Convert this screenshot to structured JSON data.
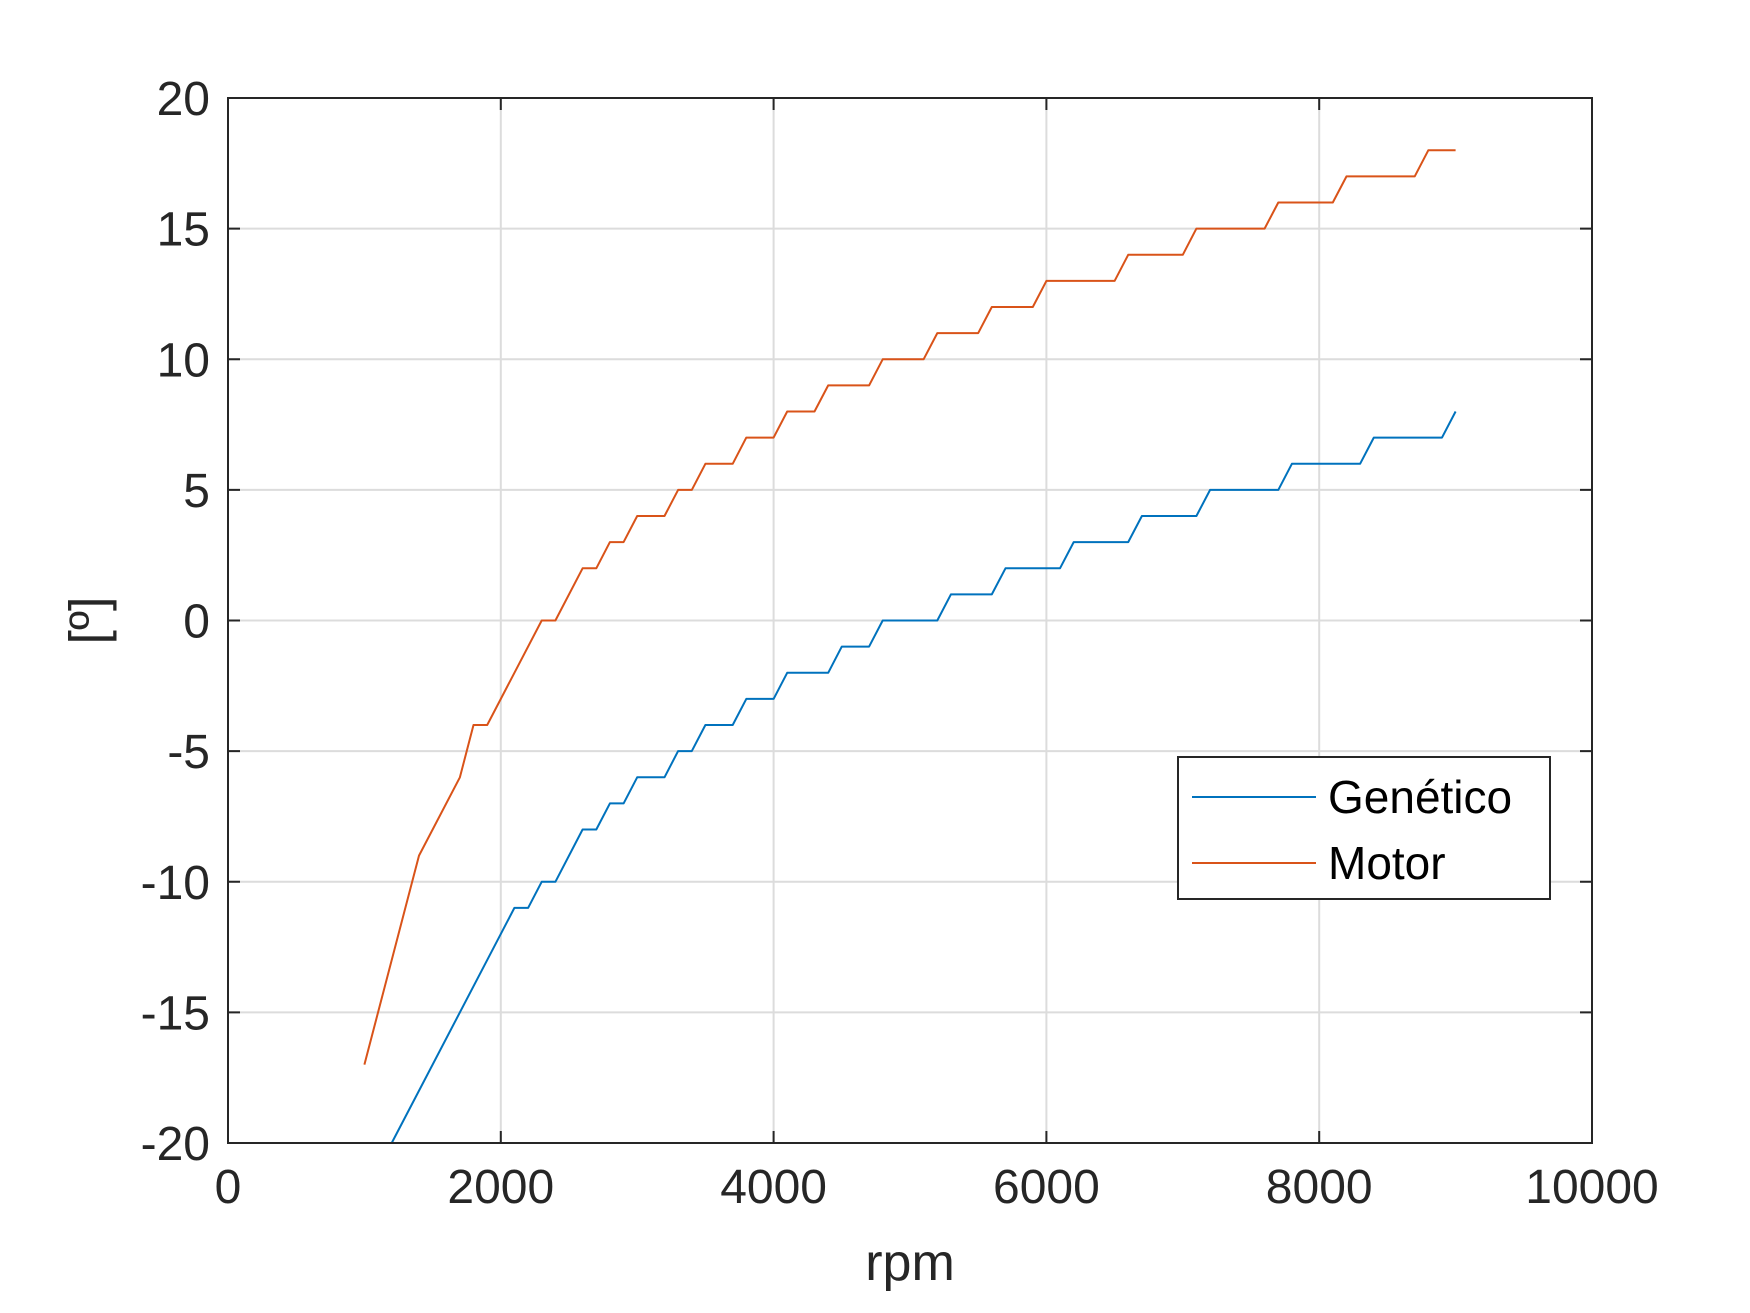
{
  "chart_data": {
    "type": "line",
    "xlabel": "rpm",
    "ylabel": "[º]",
    "xlim": [
      0,
      10000
    ],
    "ylim": [
      -20,
      20
    ],
    "xticks": [
      0,
      2000,
      4000,
      6000,
      8000,
      10000
    ],
    "xtick_labels": [
      "0",
      "2000",
      "4000",
      "6000",
      "8000",
      "10000"
    ],
    "yticks": [
      -20,
      -15,
      -10,
      -5,
      0,
      5,
      10,
      15,
      20
    ],
    "ytick_labels": [
      "-20",
      "-15",
      "-10",
      "-5",
      "0",
      "5",
      "10",
      "15",
      "20"
    ],
    "grid": true,
    "legend_position": "lower-right",
    "series": [
      {
        "name": "Genético",
        "color": "#0072BD",
        "x": [
          1000,
          1200,
          2100,
          2200,
          2300,
          2400,
          2600,
          2700,
          2800,
          2900,
          3000,
          3200,
          3300,
          3400,
          3500,
          3700,
          3800,
          4000,
          4100,
          4400,
          4500,
          4700,
          4800,
          5200,
          5300,
          5600,
          5700,
          6100,
          6200,
          6600,
          6700,
          7100,
          7200,
          7700,
          7800,
          8300,
          8400,
          8900,
          9000
        ],
        "y": [
          -20,
          -20,
          -11,
          -11,
          -10,
          -10,
          -8,
          -8,
          -7,
          -7,
          -6,
          -6,
          -5,
          -5,
          -4,
          -4,
          -3,
          -3,
          -2,
          -2,
          -1,
          -1,
          0,
          0,
          1,
          1,
          2,
          2,
          3,
          3,
          4,
          4,
          5,
          5,
          6,
          6,
          7,
          7,
          8
        ]
      },
      {
        "name": "Motor",
        "color": "#D95319",
        "x": [
          1000,
          1400,
          1700,
          1800,
          1900,
          2300,
          2400,
          2600,
          2700,
          2800,
          2900,
          3000,
          3200,
          3300,
          3400,
          3500,
          3700,
          3800,
          4000,
          4100,
          4300,
          4400,
          4700,
          4800,
          5100,
          5200,
          5500,
          5600,
          5900,
          6000,
          6500,
          6600,
          7000,
          7100,
          7600,
          7700,
          8100,
          8200,
          8700,
          8800,
          9000
        ],
        "y": [
          -17,
          -9,
          -6,
          -4,
          -4,
          0,
          0,
          2,
          2,
          3,
          3,
          4,
          4,
          5,
          5,
          6,
          6,
          7,
          7,
          8,
          8,
          9,
          9,
          10,
          10,
          11,
          11,
          12,
          12,
          13,
          13,
          14,
          14,
          15,
          15,
          16,
          16,
          17,
          17,
          18,
          18
        ]
      }
    ]
  }
}
